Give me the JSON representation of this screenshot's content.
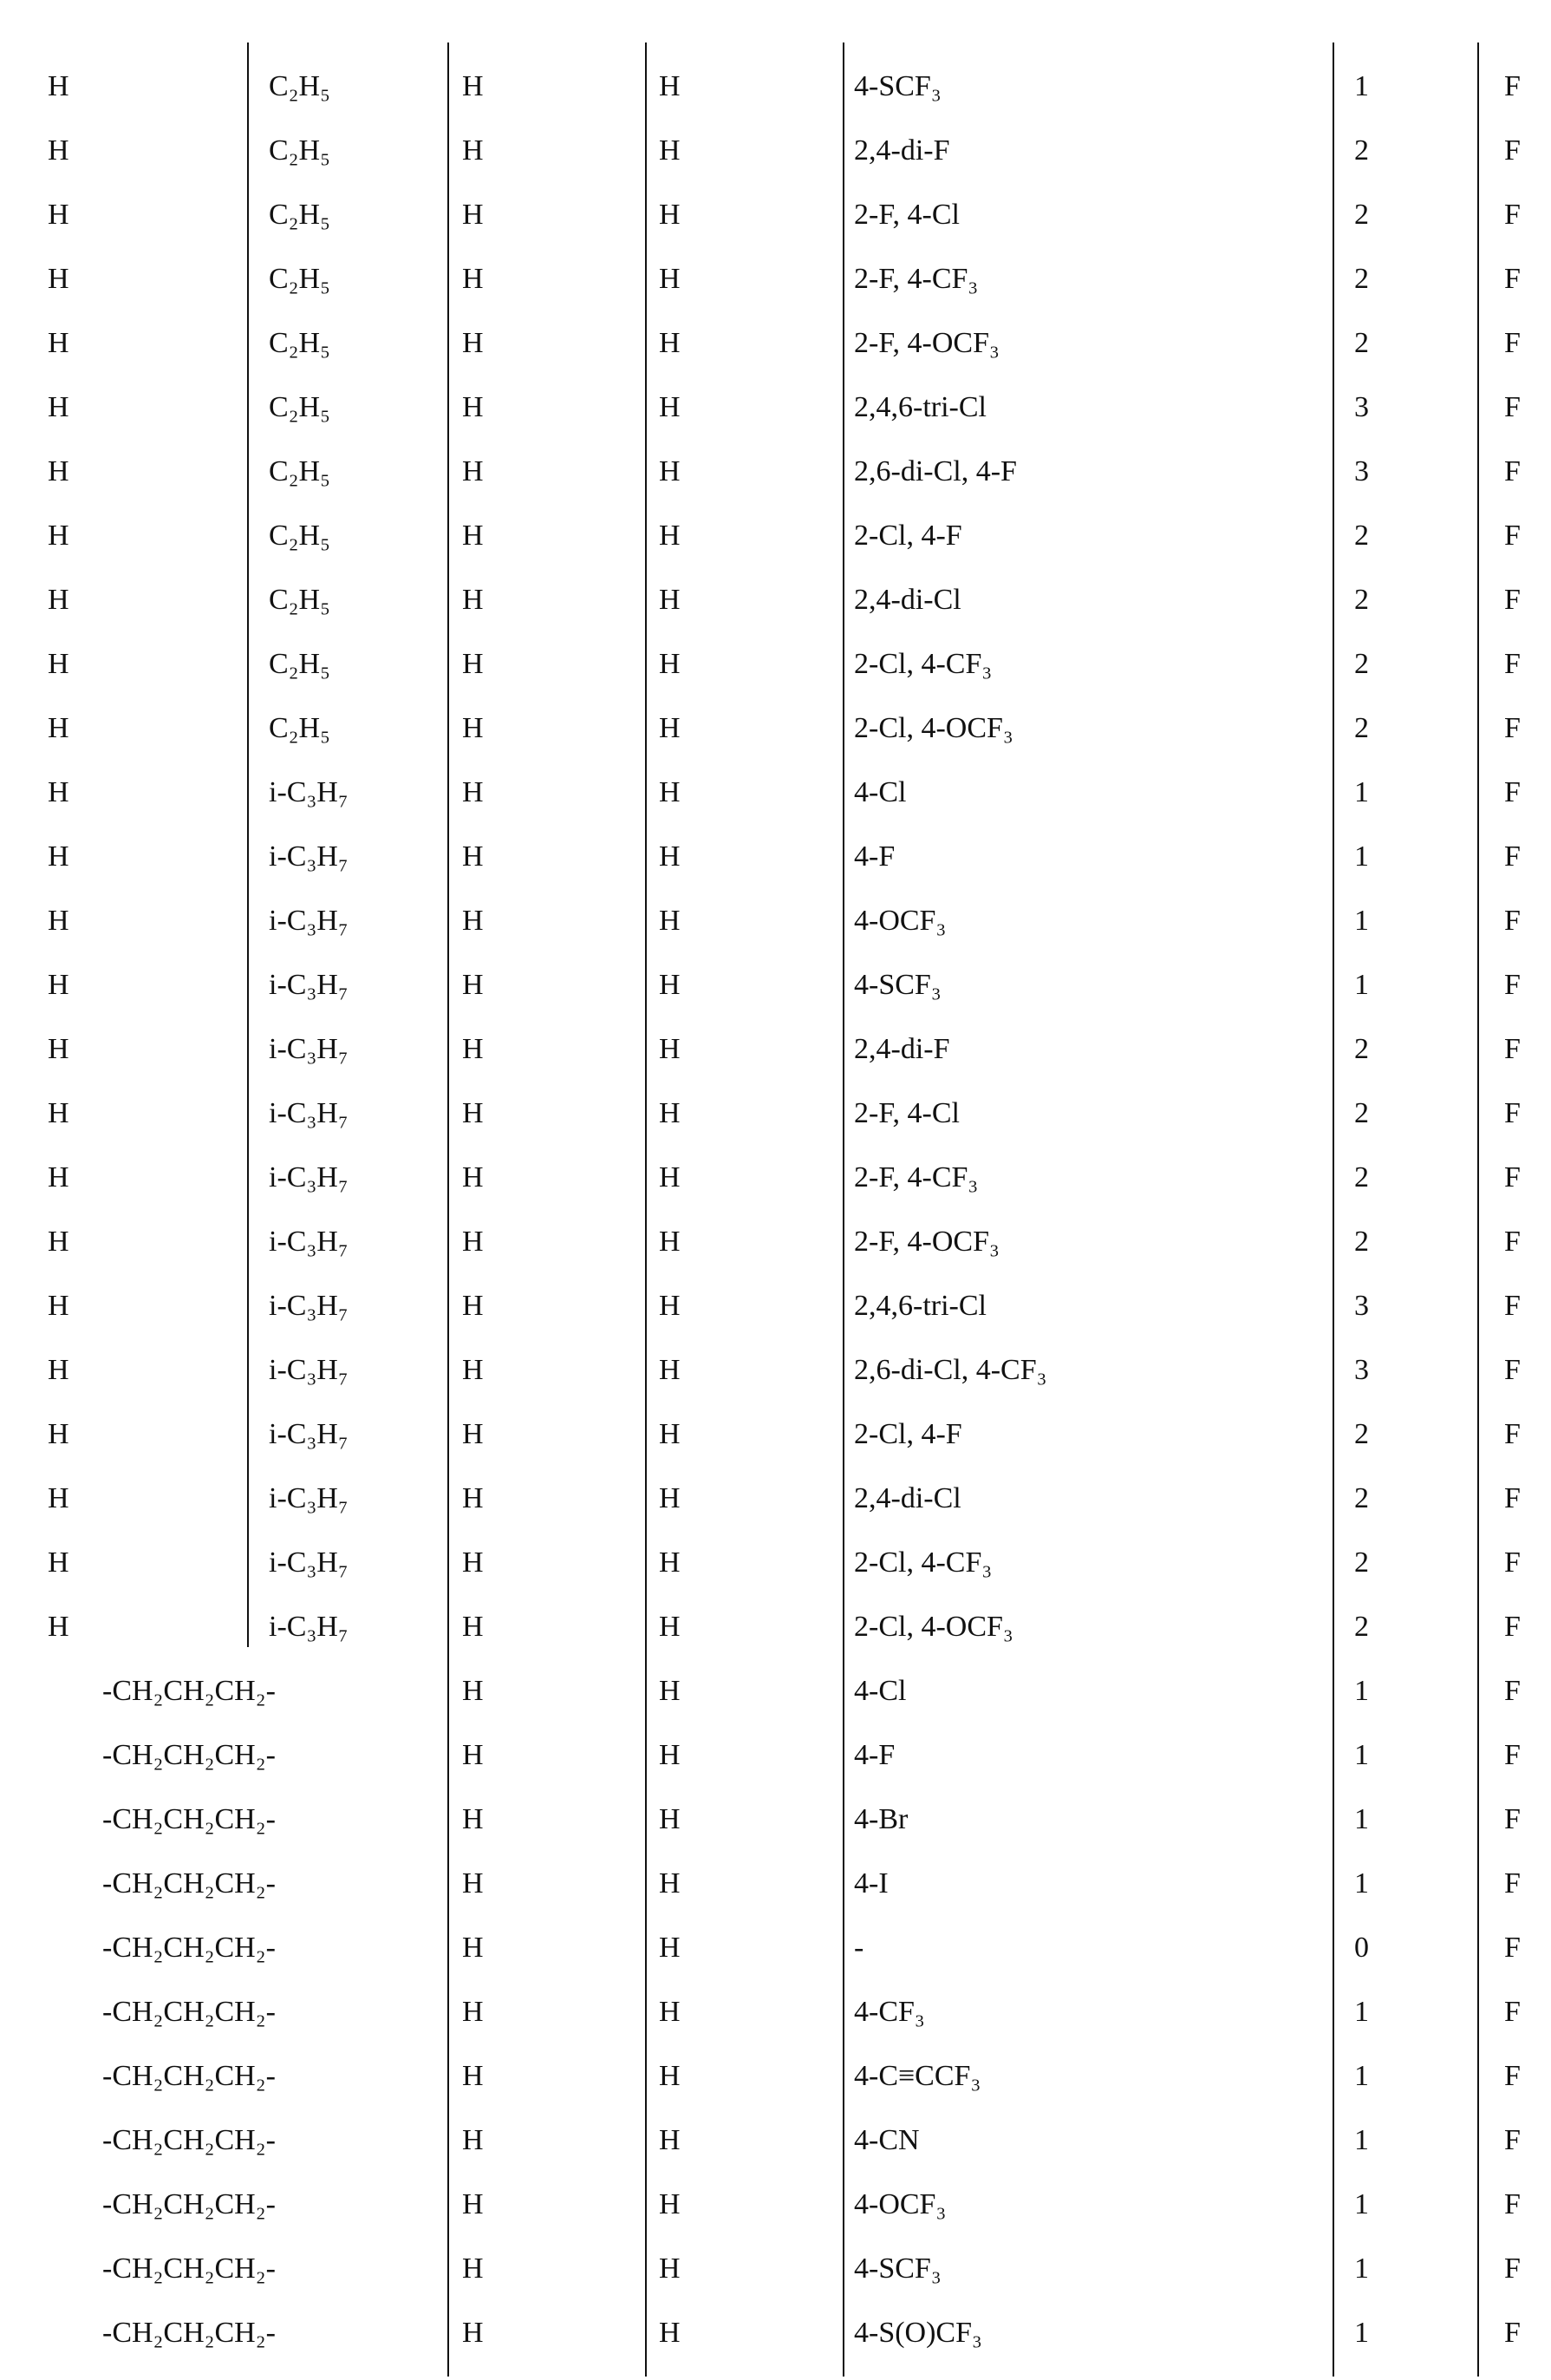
{
  "rows": [
    {
      "c1": "H",
      "c2": "C₂H₅",
      "c3": "H",
      "c4": "H",
      "c5": "4-SCF₃",
      "c6": "1",
      "c7": "F"
    },
    {
      "c1": "H",
      "c2": "C₂H₅",
      "c3": "H",
      "c4": "H",
      "c5": "2,4-di-F",
      "c6": "2",
      "c7": "F"
    },
    {
      "c1": "H",
      "c2": "C₂H₅",
      "c3": "H",
      "c4": "H",
      "c5": "2-F, 4-Cl",
      "c6": "2",
      "c7": "F"
    },
    {
      "c1": "H",
      "c2": "C₂H₅",
      "c3": "H",
      "c4": "H",
      "c5": "2-F, 4-CF₃",
      "c6": "2",
      "c7": "F"
    },
    {
      "c1": "H",
      "c2": "C₂H₅",
      "c3": "H",
      "c4": "H",
      "c5": "2-F, 4-OCF₃",
      "c6": "2",
      "c7": "F"
    },
    {
      "c1": "H",
      "c2": "C₂H₅",
      "c3": "H",
      "c4": "H",
      "c5": "2,4,6-tri-Cl",
      "c6": "3",
      "c7": "F"
    },
    {
      "c1": "H",
      "c2": "C₂H₅",
      "c3": "H",
      "c4": "H",
      "c5": "2,6-di-Cl, 4-F",
      "c6": "3",
      "c7": "F"
    },
    {
      "c1": "H",
      "c2": "C₂H₅",
      "c3": "H",
      "c4": "H",
      "c5": "2-Cl, 4-F",
      "c6": "2",
      "c7": "F"
    },
    {
      "c1": "H",
      "c2": "C₂H₅",
      "c3": "H",
      "c4": "H",
      "c5": "2,4-di-Cl",
      "c6": "2",
      "c7": "F"
    },
    {
      "c1": "H",
      "c2": "C₂H₅",
      "c3": "H",
      "c4": "H",
      "c5": "2-Cl, 4-CF₃",
      "c6": "2",
      "c7": "F"
    },
    {
      "c1": "H",
      "c2": "C₂H₅",
      "c3": "H",
      "c4": "H",
      "c5": "2-Cl, 4-OCF₃",
      "c6": "2",
      "c7": "F"
    },
    {
      "c1": "H",
      "c2": "i-C₃H₇",
      "c3": "H",
      "c4": "H",
      "c5": "4-Cl",
      "c6": "1",
      "c7": "F"
    },
    {
      "c1": "H",
      "c2": "i-C₃H₇",
      "c3": "H",
      "c4": "H",
      "c5": "4-F",
      "c6": "1",
      "c7": "F"
    },
    {
      "c1": "H",
      "c2": "i-C₃H₇",
      "c3": "H",
      "c4": "H",
      "c5": "4-OCF₃",
      "c6": "1",
      "c7": "F"
    },
    {
      "c1": "H",
      "c2": "i-C₃H₇",
      "c3": "H",
      "c4": "H",
      "c5": "4-SCF₃",
      "c6": "1",
      "c7": "F"
    },
    {
      "c1": "H",
      "c2": "i-C₃H₇",
      "c3": "H",
      "c4": "H",
      "c5": "2,4-di-F",
      "c6": "2",
      "c7": "F"
    },
    {
      "c1": "H",
      "c2": "i-C₃H₇",
      "c3": "H",
      "c4": "H",
      "c5": "2-F, 4-Cl",
      "c6": "2",
      "c7": "F"
    },
    {
      "c1": "H",
      "c2": "i-C₃H₇",
      "c3": "H",
      "c4": "H",
      "c5": "2-F, 4-CF₃",
      "c6": "2",
      "c7": "F"
    },
    {
      "c1": "H",
      "c2": "i-C₃H₇",
      "c3": "H",
      "c4": "H",
      "c5": "2-F, 4-OCF₃",
      "c6": "2",
      "c7": "F"
    },
    {
      "c1": "H",
      "c2": "i-C₃H₇",
      "c3": "H",
      "c4": "H",
      "c5": "2,4,6-tri-Cl",
      "c6": "3",
      "c7": "F"
    },
    {
      "c1": "H",
      "c2": "i-C₃H₇",
      "c3": "H",
      "c4": "H",
      "c5": "2,6-di-Cl, 4-CF₃",
      "c6": "3",
      "c7": "F"
    },
    {
      "c1": "H",
      "c2": "i-C₃H₇",
      "c3": "H",
      "c4": "H",
      "c5": "2-Cl, 4-F",
      "c6": "2",
      "c7": "F"
    },
    {
      "c1": "H",
      "c2": "i-C₃H₇",
      "c3": "H",
      "c4": "H",
      "c5": "2,4-di-Cl",
      "c6": "2",
      "c7": "F"
    },
    {
      "c1": "H",
      "c2": "i-C₃H₇",
      "c3": "H",
      "c4": "H",
      "c5": "2-Cl, 4-CF₃",
      "c6": "2",
      "c7": "F"
    },
    {
      "c1": "H",
      "c2": "i-C₃H₇",
      "c3": "H",
      "c4": "H",
      "c5": "2-Cl, 4-OCF₃",
      "c6": "2",
      "c7": "F"
    },
    {
      "c12": "-CH₂CH₂CH₂-",
      "c3": "H",
      "c4": "H",
      "c5": "4-Cl",
      "c6": "1",
      "c7": "F"
    },
    {
      "c12": "-CH₂CH₂CH₂-",
      "c3": "H",
      "c4": "H",
      "c5": "4-F",
      "c6": "1",
      "c7": "F"
    },
    {
      "c12": "-CH₂CH₂CH₂-",
      "c3": "H",
      "c4": "H",
      "c5": "4-Br",
      "c6": "1",
      "c7": "F"
    },
    {
      "c12": "-CH₂CH₂CH₂-",
      "c3": "H",
      "c4": "H",
      "c5": "4-I",
      "c6": "1",
      "c7": "F"
    },
    {
      "c12": "-CH₂CH₂CH₂-",
      "c3": "H",
      "c4": "H",
      "c5": "-",
      "c6": "0",
      "c7": "F"
    },
    {
      "c12": "-CH₂CH₂CH₂-",
      "c3": "H",
      "c4": "H",
      "c5": "4-CF₃",
      "c6": "1",
      "c7": "F"
    },
    {
      "c12": "-CH₂CH₂CH₂-",
      "c3": "H",
      "c4": "H",
      "c5": "4-C≡CCF₃",
      "c6": "1",
      "c7": "F"
    },
    {
      "c12": "-CH₂CH₂CH₂-",
      "c3": "H",
      "c4": "H",
      "c5": "4-CN",
      "c6": "1",
      "c7": "F"
    },
    {
      "c12": "-CH₂CH₂CH₂-",
      "c3": "H",
      "c4": "H",
      "c5": "4-OCF₃",
      "c6": "1",
      "c7": "F"
    },
    {
      "c12": "-CH₂CH₂CH₂-",
      "c3": "H",
      "c4": "H",
      "c5": "4-SCF₃",
      "c6": "1",
      "c7": "F"
    },
    {
      "c12": "-CH₂CH₂CH₂-",
      "c3": "H",
      "c4": "H",
      "c5": "4-S(O)CF₃",
      "c6": "1",
      "c7": "F"
    }
  ]
}
